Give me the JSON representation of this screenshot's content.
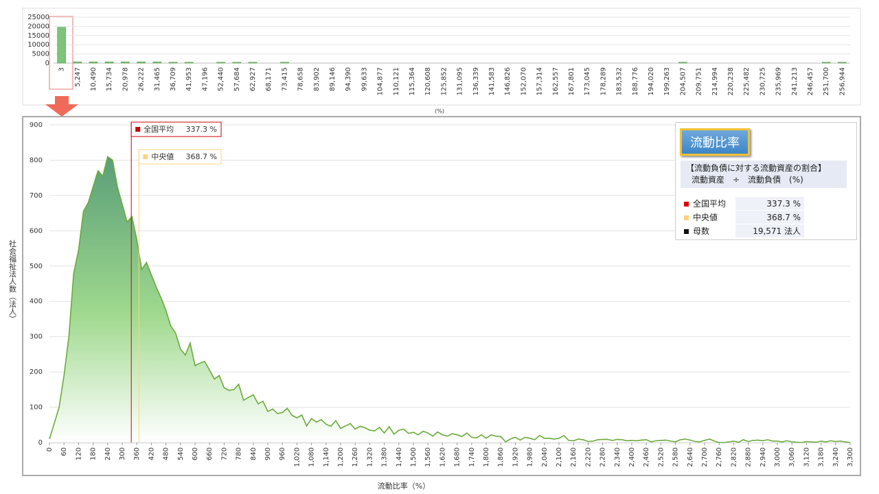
{
  "chart_data": [
    {
      "type": "bar",
      "x_label": "(%)",
      "categories": [
        "3",
        "5,247",
        "10,490",
        "15,734",
        "20,978",
        "26,222",
        "31,465",
        "36,709",
        "41,953",
        "47,196",
        "52,440",
        "57,684",
        "62,927",
        "68,171",
        "73,415",
        "78,658",
        "83,902",
        "89,146",
        "94,390",
        "99,633",
        "104,877",
        "110,121",
        "115,364",
        "120,608",
        "125,852",
        "131,095",
        "136,339",
        "141,583",
        "146,826",
        "152,070",
        "157,314",
        "162,557",
        "167,801",
        "173,045",
        "178,289",
        "183,532",
        "188,776",
        "194,020",
        "199,263",
        "204,507",
        "209,751",
        "214,994",
        "220,238",
        "225,482",
        "230,725",
        "235,969",
        "241,213",
        "246,457",
        "251,700",
        "256,944"
      ],
      "values": [
        19500,
        700,
        700,
        700,
        700,
        700,
        700,
        500,
        500,
        0,
        500,
        500,
        500,
        0,
        500,
        0,
        0,
        0,
        0,
        0,
        0,
        0,
        0,
        0,
        0,
        0,
        0,
        0,
        0,
        0,
        0,
        0,
        0,
        0,
        0,
        0,
        0,
        0,
        0,
        500,
        0,
        0,
        0,
        0,
        0,
        0,
        0,
        0,
        500,
        500
      ],
      "color": "#7cc47a",
      "ylim": [
        0,
        25000
      ],
      "yticks": [
        0,
        5000,
        10000,
        15000,
        20000,
        25000
      ],
      "grid": true
    },
    {
      "type": "area",
      "x_label": "流動比率（%）",
      "y_label": "社会福祉法人数（法人）",
      "x": [
        0,
        20,
        40,
        60,
        80,
        100,
        120,
        140,
        160,
        180,
        200,
        220,
        240,
        260,
        280,
        300,
        320,
        340,
        360,
        380,
        400,
        420,
        440,
        460,
        480,
        500,
        520,
        540,
        560,
        580,
        600,
        620,
        640,
        660,
        680,
        700,
        720,
        740,
        760,
        780,
        800,
        820,
        840,
        860,
        880,
        900,
        920,
        940,
        960,
        980,
        1000,
        1020,
        1040,
        1060,
        1080,
        1100,
        1120,
        1140,
        1160,
        1180,
        1200,
        1220,
        1240,
        1260,
        1280,
        1300,
        1320,
        1340,
        1360,
        1380,
        1400,
        1420,
        1440,
        1460,
        1480,
        1500,
        1520,
        1540,
        1560,
        1580,
        1600,
        1620,
        1640,
        1660,
        1680,
        1700,
        1720,
        1740,
        1760,
        1780,
        1800,
        1820,
        1840,
        1860,
        1880,
        1900,
        1920,
        1940,
        1960,
        1980,
        2000,
        2020,
        2040,
        2060,
        2080,
        2100,
        2120,
        2140,
        2160,
        2180,
        2200,
        2220,
        2240,
        2260,
        2280,
        2300,
        2320,
        2340,
        2360,
        2380,
        2400,
        2420,
        2440,
        2460,
        2480,
        2500,
        2520,
        2540,
        2560,
        2580,
        2600,
        2620,
        2640,
        2660,
        2680,
        2700,
        2720,
        2740,
        2760,
        2780,
        2800,
        2820,
        2840,
        2860,
        2880,
        2900,
        2920,
        2940,
        2960,
        2980,
        3000,
        3020,
        3040,
        3060,
        3080,
        3100,
        3120,
        3140,
        3160,
        3180,
        3200,
        3220,
        3240,
        3260,
        3280,
        3300
      ],
      "values": [
        10,
        55,
        100,
        190,
        300,
        480,
        545,
        655,
        680,
        725,
        770,
        755,
        810,
        800,
        725,
        675,
        625,
        640,
        575,
        490,
        510,
        475,
        440,
        410,
        375,
        330,
        310,
        265,
        248,
        282,
        218,
        225,
        230,
        205,
        180,
        190,
        155,
        148,
        150,
        165,
        120,
        128,
        135,
        110,
        117,
        88,
        95,
        82,
        85,
        97,
        77,
        70,
        78,
        47,
        68,
        58,
        65,
        52,
        46,
        62,
        40,
        47,
        54,
        38,
        46,
        42,
        35,
        33,
        43,
        27,
        45,
        24,
        35,
        38,
        26,
        29,
        22,
        32,
        27,
        18,
        30,
        22,
        18,
        25,
        22,
        17,
        27,
        15,
        13,
        22,
        12,
        22,
        18,
        17,
        2,
        10,
        15,
        7,
        15,
        12,
        8,
        20,
        12,
        12,
        10,
        12,
        20,
        6,
        5,
        10,
        8,
        3,
        4,
        8,
        9,
        9,
        6,
        9,
        8,
        5,
        6,
        5,
        7,
        8,
        2,
        5,
        6,
        7,
        4,
        2,
        8,
        10,
        7,
        3,
        2,
        6,
        10,
        4,
        0,
        0,
        2,
        4,
        1,
        8,
        3,
        6,
        7,
        5,
        8,
        4,
        4,
        2,
        5,
        2,
        1,
        0,
        3,
        2,
        1,
        4,
        2,
        5,
        3,
        4,
        2,
        0
      ],
      "color": "#6aaa3a",
      "fill_top": "#5a9e78",
      "fill_bottom": "#ffffff",
      "xlim": [
        0,
        3300
      ],
      "xticks": [
        0,
        60,
        120,
        180,
        240,
        300,
        360,
        420,
        480,
        540,
        600,
        660,
        720,
        780,
        840,
        900,
        960,
        {
          "value": 1020,
          "label": "1,020"
        },
        {
          "value": 1080,
          "label": "1,080"
        },
        {
          "value": 1140,
          "label": "1,140"
        },
        {
          "value": 1200,
          "label": "1,200"
        },
        {
          "value": 1260,
          "label": "1,260"
        },
        {
          "value": 1320,
          "label": "1,320"
        },
        {
          "value": 1380,
          "label": "1,380"
        },
        {
          "value": 1440,
          "label": "1,440"
        },
        {
          "value": 1500,
          "label": "1,500"
        },
        {
          "value": 1560,
          "label": "1,560"
        },
        {
          "value": 1620,
          "label": "1,620"
        },
        {
          "value": 1680,
          "label": "1,680"
        },
        {
          "value": 1740,
          "label": "1,740"
        },
        {
          "value": 1800,
          "label": "1,800"
        },
        {
          "value": 1860,
          "label": "1,860"
        },
        {
          "value": 1920,
          "label": "1,920"
        },
        {
          "value": 1980,
          "label": "1,980"
        },
        {
          "value": 2040,
          "label": "2,040"
        },
        {
          "value": 2100,
          "label": "2,100"
        },
        {
          "value": 2160,
          "label": "2,160"
        },
        {
          "value": 2220,
          "label": "2,220"
        },
        {
          "value": 2280,
          "label": "2,280"
        },
        {
          "value": 2340,
          "label": "2,340"
        },
        {
          "value": 2400,
          "label": "2,400"
        },
        {
          "value": 2460,
          "label": "2,460"
        },
        {
          "value": 2520,
          "label": "2,520"
        },
        {
          "value": 2580,
          "label": "2,580"
        },
        {
          "value": 2640,
          "label": "2,640"
        },
        {
          "value": 2700,
          "label": "2,700"
        },
        {
          "value": 2760,
          "label": "2,760"
        },
        {
          "value": 2820,
          "label": "2,820"
        },
        {
          "value": 2880,
          "label": "2,880"
        },
        {
          "value": 2940,
          "label": "2,940"
        },
        {
          "value": 3000,
          "label": "3,000"
        },
        {
          "value": 3060,
          "label": "3,060"
        },
        {
          "value": 3120,
          "label": "3,120"
        },
        {
          "value": 3180,
          "label": "3,180"
        },
        {
          "value": 3240,
          "label": "3,240"
        },
        {
          "value": 3300,
          "label": "3,300"
        }
      ],
      "ylim": [
        0,
        900
      ],
      "yticks": [
        0,
        100,
        200,
        300,
        400,
        500,
        600,
        700,
        800,
        900
      ],
      "grid": true,
      "reference_lines": [
        {
          "name": "全国平均",
          "value": 337.3,
          "value_label": "337.3 %",
          "color": "#cc0000"
        },
        {
          "name": "中央値",
          "value": 368.7,
          "value_label": "368.7 %",
          "color": "#ffd27f"
        }
      ]
    }
  ],
  "info_box": {
    "title": "流動比率",
    "description": [
      "【流動負債に対する流動資産の割合】",
      "流動資産　÷　流動負債　(%)"
    ],
    "rows": [
      [
        "全国平均",
        "337.3 %"
      ],
      [
        "中央値",
        "368.7 %"
      ],
      [
        "母数",
        "19,571 法人"
      ]
    ],
    "row_colors": [
      "#e00000",
      "#ffd27f",
      "#111111"
    ]
  }
}
